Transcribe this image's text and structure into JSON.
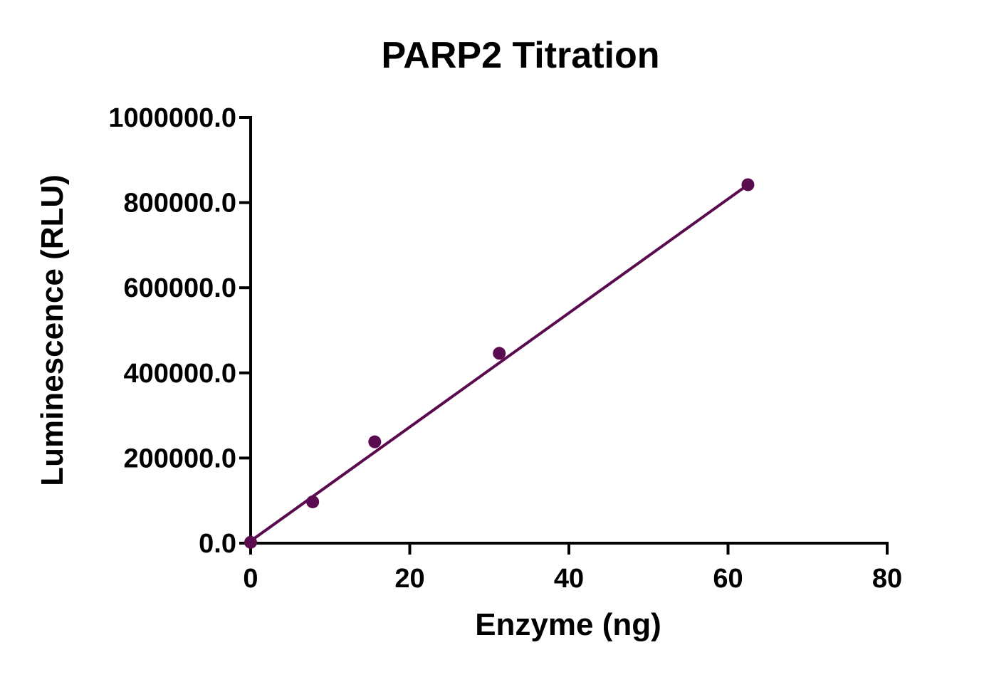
{
  "chart_data": {
    "type": "scatter",
    "title": "PARP2 Titration",
    "xlabel": "Enzyme (ng)",
    "ylabel": "Luminescence (RLU)",
    "xlim": [
      0,
      80
    ],
    "ylim": [
      0,
      1000000
    ],
    "x_ticks": [
      "0",
      "20",
      "40",
      "60",
      "80"
    ],
    "y_ticks": [
      "0.0",
      "200000.0",
      "400000.0",
      "600000.0",
      "800000.0",
      "1000000.0"
    ],
    "x_tick_values": [
      0,
      20,
      40,
      60,
      80
    ],
    "y_tick_values": [
      0,
      200000,
      400000,
      600000,
      800000,
      1000000
    ],
    "series": [
      {
        "x": [
          0,
          7.8,
          15.6,
          31.25,
          62.5
        ],
        "y": [
          2000,
          97000,
          238000,
          446000,
          842000
        ],
        "fit_line": {
          "x": [
            0,
            62.5
          ],
          "y": [
            5000,
            842000
          ]
        }
      }
    ],
    "colors": {
      "series": "#5a0a4f",
      "axes": "#000000"
    },
    "grid": false,
    "legend": "none"
  }
}
